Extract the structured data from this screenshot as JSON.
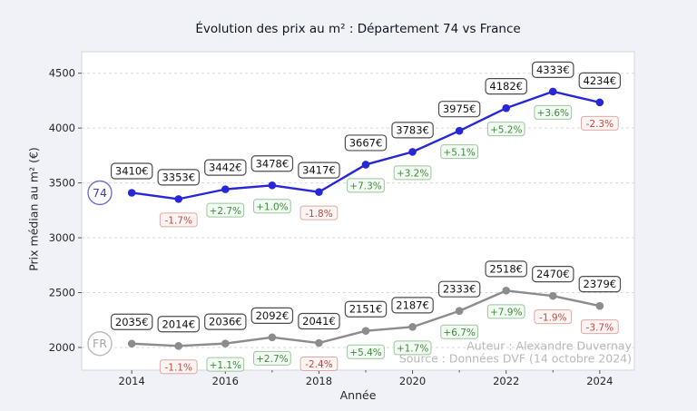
{
  "page": {
    "background": "#f0f2f8",
    "plot_background": "#ffffff"
  },
  "chart_data": {
    "type": "line",
    "title": "Évolution des prix au m² : Département 74 vs France",
    "xlabel": "Année",
    "ylabel": "Prix médian au m² (€)",
    "x": [
      2014,
      2015,
      2016,
      2017,
      2018,
      2019,
      2020,
      2021,
      2022,
      2023,
      2024
    ],
    "xticks": [
      2014,
      2016,
      2018,
      2020,
      2022,
      2024
    ],
    "xticks_minor": [
      2015,
      2017,
      2019,
      2021,
      2023
    ],
    "yticks": [
      2000,
      2500,
      3000,
      3500,
      4000,
      4500
    ],
    "xlim": [
      2012.93,
      2024.74
    ],
    "ylim": [
      1793,
      4696
    ],
    "grid": "horizontal-dashed",
    "legend_position": "inline-badges-left",
    "series": [
      {
        "name": "74",
        "line_color": "#2727d8",
        "badge": {
          "label": "74",
          "ring": "#7070cf",
          "text": "#3a3ac0"
        },
        "values": [
          3410,
          3353,
          3442,
          3478,
          3417,
          3667,
          3783,
          3975,
          4182,
          4333,
          4234
        ],
        "value_labels": [
          "3410€",
          "3353€",
          "3442€",
          "3478€",
          "3417€",
          "3667€",
          "3783€",
          "3975€",
          "4182€",
          "4333€",
          "4234€"
        ],
        "pct_labels": [
          null,
          "-1.7%",
          "+2.7%",
          "+1.0%",
          "-1.8%",
          "+7.3%",
          "+3.2%",
          "+5.1%",
          "+5.2%",
          "+3.6%",
          "-2.3%"
        ]
      },
      {
        "name": "FR",
        "line_color": "#8c8c8c",
        "badge": {
          "label": "FR",
          "ring": "#bcbcbc",
          "text": "#a6a6a6"
        },
        "values": [
          2035,
          2014,
          2036,
          2092,
          2041,
          2151,
          2187,
          2333,
          2518,
          2470,
          2379
        ],
        "value_labels": [
          "2035€",
          "2014€",
          "2036€",
          "2092€",
          "2041€",
          "2151€",
          "2187€",
          "2333€",
          "2518€",
          "2470€",
          "2379€"
        ],
        "pct_labels": [
          null,
          "-1.1%",
          "+1.1%",
          "+2.7%",
          "-2.4%",
          "+5.4%",
          "+1.7%",
          "+6.7%",
          "+7.9%",
          "-1.9%",
          "-3.7%"
        ]
      }
    ],
    "annotations": {
      "author": "Auteur : Alexandre Duvernay",
      "source": "Source : Données DVF (14 octobre 2024)"
    }
  },
  "colors": {
    "value_box": {
      "bg": "#ffffff",
      "border": "#4d4d4d",
      "text": "#141414"
    },
    "pct_positive": {
      "bg": "#f3faf3",
      "border": "#9cc79c",
      "text": "#3f8c3f"
    },
    "pct_negative": {
      "bg": "#fdf5f4",
      "border": "#e2a8a2",
      "text": "#bf4a43"
    },
    "gridline": "#d9d9d9",
    "plot_border": "#d0d5de",
    "tick": "#555555",
    "tick_label": "#262626",
    "watermark": "#b9b9b9"
  }
}
